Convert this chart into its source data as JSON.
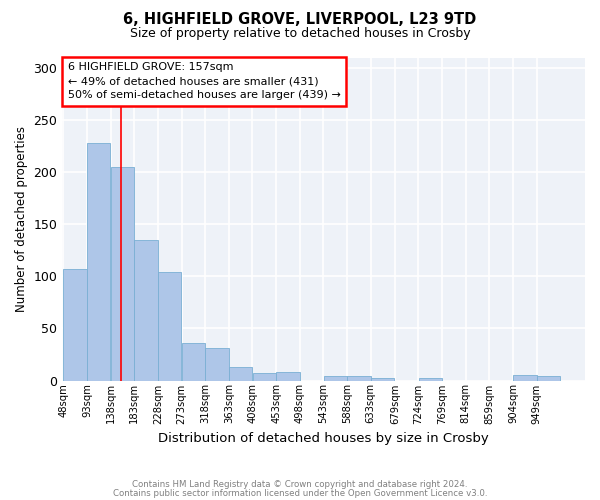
{
  "title1": "6, HIGHFIELD GROVE, LIVERPOOL, L23 9TD",
  "title2": "Size of property relative to detached houses in Crosby",
  "xlabel": "Distribution of detached houses by size in Crosby",
  "ylabel": "Number of detached properties",
  "bin_labels": [
    "48sqm",
    "93sqm",
    "138sqm",
    "183sqm",
    "228sqm",
    "273sqm",
    "318sqm",
    "363sqm",
    "408sqm",
    "453sqm",
    "498sqm",
    "543sqm",
    "588sqm",
    "633sqm",
    "679sqm",
    "724sqm",
    "769sqm",
    "814sqm",
    "859sqm",
    "904sqm",
    "949sqm"
  ],
  "bin_edges": [
    48,
    93,
    138,
    183,
    228,
    273,
    318,
    363,
    408,
    453,
    498,
    543,
    588,
    633,
    679,
    724,
    769,
    814,
    859,
    904,
    949,
    994
  ],
  "bar_heights": [
    107,
    228,
    205,
    135,
    104,
    36,
    31,
    13,
    7,
    8,
    0,
    4,
    4,
    2,
    0,
    2,
    0,
    0,
    0,
    5,
    4
  ],
  "bar_color": "#aec6e8",
  "bar_edge_color": "#7aafd4",
  "red_line_x": 157,
  "ylim": [
    0,
    310
  ],
  "yticks": [
    0,
    50,
    100,
    150,
    200,
    250,
    300
  ],
  "annotation_text": "6 HIGHFIELD GROVE: 157sqm\n← 49% of detached houses are smaller (431)\n50% of semi-detached houses are larger (439) →",
  "annotation_box_color": "white",
  "annotation_box_edge_color": "red",
  "footer1": "Contains HM Land Registry data © Crown copyright and database right 2024.",
  "footer2": "Contains public sector information licensed under the Open Government Licence v3.0.",
  "background_color": "#eef2f8",
  "grid_color": "white"
}
